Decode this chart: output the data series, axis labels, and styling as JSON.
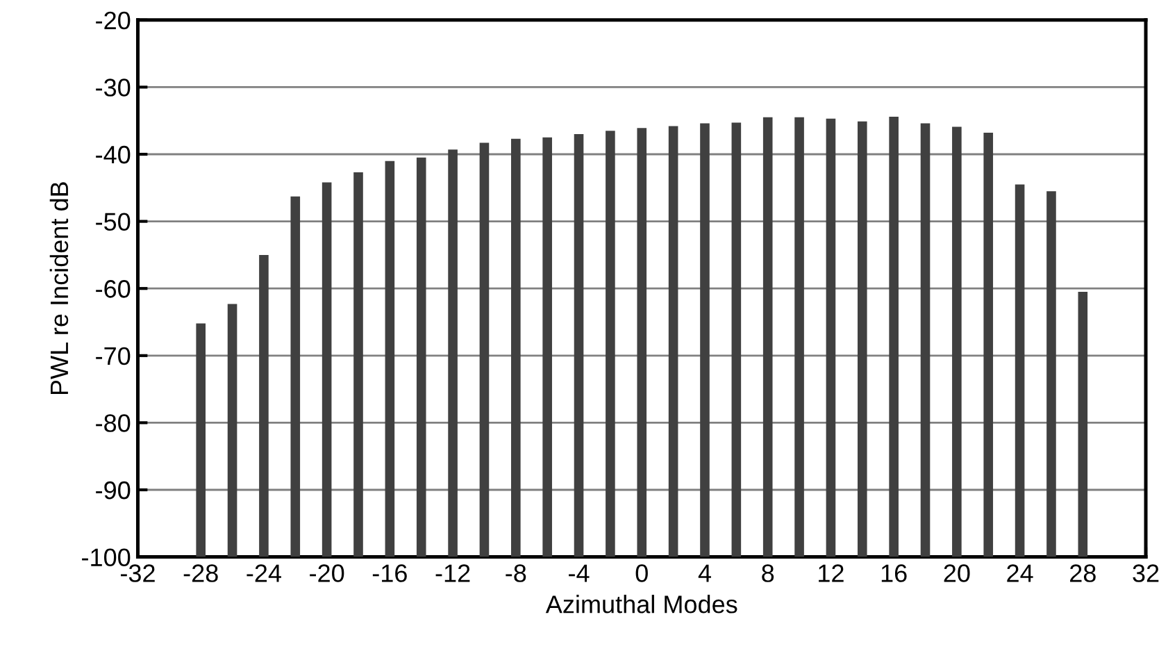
{
  "chart_data": {
    "type": "bar",
    "xlabel": "Azimuthal Modes",
    "ylabel": "PWL re Incident dB",
    "x": [
      -28,
      -26,
      -24,
      -22,
      -20,
      -18,
      -16,
      -14,
      -12,
      -10,
      -8,
      -6,
      -4,
      -2,
      0,
      2,
      4,
      6,
      8,
      10,
      12,
      14,
      16,
      18,
      20,
      22,
      24,
      26,
      28
    ],
    "base": [
      -100,
      -100,
      -100,
      -100,
      -100,
      -100,
      -100,
      -100,
      -100,
      -100,
      -100,
      -100,
      -100,
      -100,
      -100,
      -100,
      -100,
      -100,
      -100,
      -100,
      -100,
      -100,
      -100,
      -100,
      -100,
      -100,
      -100,
      -100,
      -100
    ],
    "values": [
      34.8,
      37.7,
      45,
      53.7,
      55.8,
      57.3,
      59,
      59.5,
      60.7,
      61.7,
      62.3,
      62.5,
      63,
      63.5,
      63.9,
      64.2,
      64.6,
      64.7,
      65.5,
      65.5,
      65.3,
      64.9,
      65.6,
      64.6,
      64.1,
      63.2,
      55.5,
      54.5,
      39.5
    ],
    "color": "#404040",
    "xlim": [
      -32,
      32
    ],
    "xticks": [
      -32,
      -28,
      -24,
      -20,
      -16,
      -12,
      -8,
      -4,
      0,
      4,
      8,
      12,
      16,
      20,
      24,
      28,
      32
    ],
    "ylim": [
      -100,
      -20
    ],
    "yticks": [
      -100,
      -90,
      -80,
      -70,
      -60,
      -50,
      -40,
      -30,
      -20
    ],
    "grid": "y"
  }
}
